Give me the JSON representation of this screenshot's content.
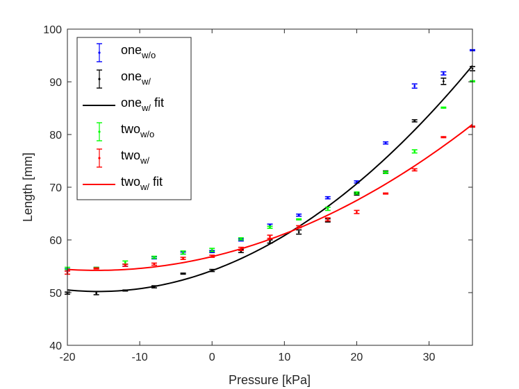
{
  "chart_data": {
    "type": "scatter",
    "title": "",
    "xlabel": "Pressure [kPa]",
    "ylabel": "Length [mm]",
    "xlim": [
      -20,
      36
    ],
    "ylim": [
      40,
      100
    ],
    "xticks": [
      -20,
      -10,
      0,
      10,
      20,
      30
    ],
    "yticks": [
      40,
      50,
      60,
      70,
      80,
      90,
      100
    ],
    "xtick_labels": [
      "-20",
      "-10",
      "0",
      "10",
      "20",
      "30"
    ],
    "ytick_labels": [
      "40",
      "50",
      "60",
      "70",
      "80",
      "90",
      "100"
    ],
    "grid": false,
    "legend_position": "top-left",
    "series": [
      {
        "name": "one_w/o",
        "label_main": "one",
        "label_sub": "w/o",
        "label_suffix": "",
        "kind": "errorbar",
        "color": "#0000ff",
        "x": [
          -20,
          -16,
          -12,
          -8,
          -4,
          0,
          4,
          8,
          12,
          16,
          20,
          24,
          28,
          32,
          36
        ],
        "y": [
          54.3,
          54.7,
          55.2,
          56.6,
          57.5,
          57.8,
          60.0,
          62.8,
          64.7,
          68.0,
          71.0,
          78.4,
          89.2,
          91.6,
          96.0
        ],
        "err": [
          0.2,
          0.1,
          0.2,
          0.2,
          0.2,
          0.2,
          0.2,
          0.2,
          0.2,
          0.2,
          0.2,
          0.2,
          0.4,
          0.3,
          0.1
        ]
      },
      {
        "name": "one_w/",
        "label_main": "one",
        "label_sub": "w/",
        "label_suffix": "",
        "kind": "errorbar",
        "color": "#000000",
        "x": [
          -20,
          -16,
          -12,
          -8,
          -4,
          0,
          4,
          8,
          12,
          16,
          20,
          24,
          28,
          32,
          36
        ],
        "y": [
          49.9,
          49.9,
          50.4,
          51.1,
          53.6,
          54.2,
          57.9,
          59.7,
          61.5,
          63.7,
          68.7,
          72.9,
          82.6,
          90.1,
          92.5
        ],
        "err": [
          0.2,
          0.3,
          0.1,
          0.2,
          0.1,
          0.2,
          0.3,
          0.3,
          0.4,
          0.3,
          0.2,
          0.2,
          0.2,
          0.6,
          0.4
        ]
      },
      {
        "name": "one_w/ fit",
        "label_main": "one",
        "label_sub": "w/",
        "label_suffix": " fit",
        "kind": "fit",
        "color": "#000000",
        "coeffs": [
          54.18,
          0.504,
          0.01601
        ]
      },
      {
        "name": "two_w/o",
        "label_main": "two",
        "label_sub": "w/o",
        "label_suffix": "",
        "kind": "errorbar",
        "color": "#00ff00",
        "x": [
          -20,
          -16,
          -12,
          -8,
          -4,
          0,
          4,
          8,
          12,
          16,
          20,
          24,
          28,
          32,
          36
        ],
        "y": [
          54.6,
          54.7,
          55.7,
          56.7,
          57.6,
          58.1,
          60.2,
          62.4,
          63.9,
          65.9,
          68.9,
          72.8,
          76.8,
          85.1,
          90.1
        ],
        "err": [
          0.2,
          0.1,
          0.3,
          0.2,
          0.3,
          0.3,
          0.2,
          0.2,
          0.1,
          0.3,
          0.2,
          0.2,
          0.3,
          0.1,
          0.1
        ]
      },
      {
        "name": "two_w/",
        "label_main": "two",
        "label_sub": "w/",
        "label_suffix": "",
        "kind": "errorbar",
        "color": "#ff0000",
        "x": [
          -20,
          -16,
          -12,
          -8,
          -4,
          0,
          4,
          8,
          12,
          16,
          20,
          24,
          28,
          32,
          36
        ],
        "y": [
          53.8,
          54.6,
          55.2,
          55.4,
          56.5,
          56.9,
          58.3,
          60.6,
          62.5,
          63.9,
          65.3,
          68.8,
          73.3,
          79.5,
          81.5
        ],
        "err": [
          0.3,
          0.1,
          0.2,
          0.2,
          0.2,
          0.2,
          0.3,
          0.3,
          0.2,
          0.3,
          0.3,
          0.1,
          0.2,
          0.1,
          0.1
        ]
      },
      {
        "name": "two_w/ fit",
        "label_main": "two",
        "label_sub": "w/",
        "label_suffix": " fit",
        "kind": "fit",
        "color": "#ff0000",
        "coeffs": [
          56.84,
          0.3275,
          0.01025
        ]
      }
    ]
  }
}
